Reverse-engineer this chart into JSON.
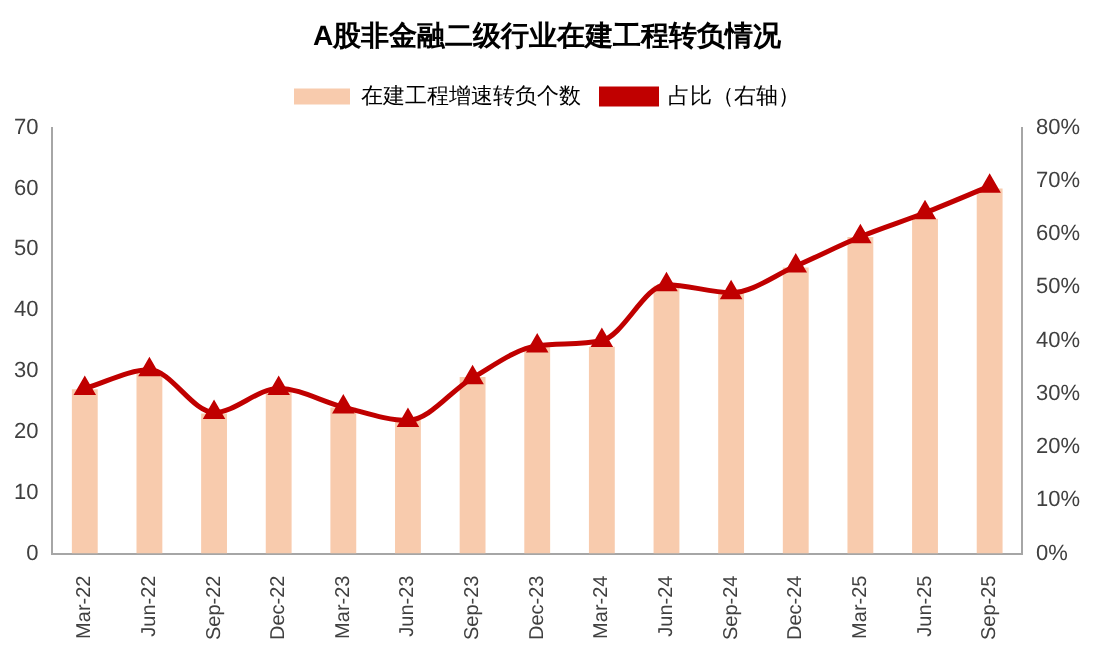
{
  "chart_data": {
    "type": "bar",
    "title": "A股非金融二级行业在建工程转负情况",
    "categories": [
      "Mar-22",
      "Jun-22",
      "Sep-22",
      "Dec-22",
      "Mar-23",
      "Jun-23",
      "Sep-23",
      "Dec-23",
      "Mar-24",
      "Jun-24",
      "Sep-24",
      "Dec-24",
      "Mar-25",
      "Jun-25",
      "Sep-25"
    ],
    "series": [
      {
        "name": "在建工程增速转负个数",
        "color": "#f8cbad",
        "values": [
          27,
          30,
          23,
          27,
          24,
          22,
          29,
          34,
          34,
          44,
          43,
          47,
          52,
          55,
          60
        ]
      },
      {
        "name": "占比（右轴）",
        "type": "line",
        "axis": "y2",
        "color": "#c00000",
        "marker": "triangle",
        "values": [
          31,
          34.5,
          26.5,
          31,
          27.5,
          25,
          33,
          39,
          40,
          50.5,
          49,
          54,
          59.5,
          64,
          69
        ]
      }
    ],
    "ylim": [
      0,
      70
    ],
    "yticks": [
      0,
      10,
      20,
      30,
      40,
      50,
      60,
      70
    ],
    "y2lim": [
      0,
      80
    ],
    "y2ticks": [
      {
        "value": 0,
        "label": "0%"
      },
      {
        "value": 10,
        "label": "10%"
      },
      {
        "value": 20,
        "label": "20%"
      },
      {
        "value": 30,
        "label": "30%"
      },
      {
        "value": 40,
        "label": "40%"
      },
      {
        "value": 50,
        "label": "50%"
      },
      {
        "value": 60,
        "label": "60%"
      },
      {
        "value": 70,
        "label": "70%"
      },
      {
        "value": 80,
        "label": "80%"
      }
    ],
    "grid": false,
    "legend": "top"
  }
}
